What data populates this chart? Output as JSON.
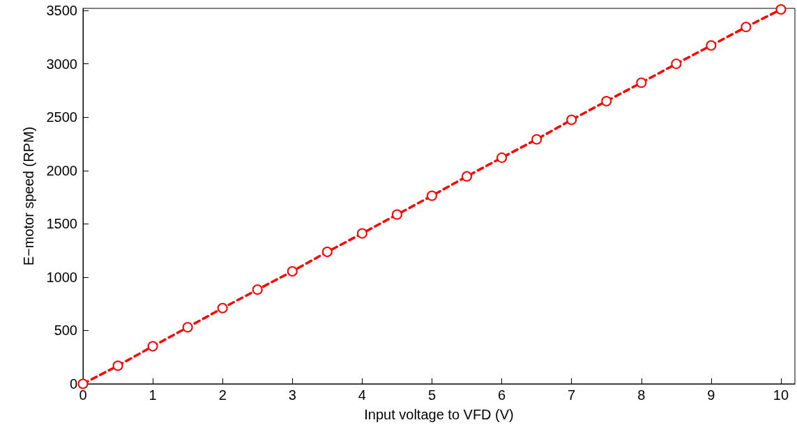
{
  "chart_data": {
    "type": "line",
    "xlabel": "Input voltage to VFD (V)",
    "ylabel": "E−motor speed (RPM)",
    "x": [
      0,
      0.5,
      1,
      1.5,
      2,
      2.5,
      3,
      3.5,
      4,
      4.5,
      5,
      5.5,
      6,
      6.5,
      7,
      7.5,
      8,
      8.5,
      9,
      9.5,
      10
    ],
    "series": [
      {
        "color": "#ff0000",
        "values": [
          0,
          170,
          352,
          530,
          710,
          883,
          1055,
          1237,
          1410,
          1587,
          1763,
          1945,
          2120,
          2292,
          2475,
          2650,
          2823,
          3000,
          3172,
          3345,
          3510
        ]
      }
    ],
    "xlim": [
      0,
      10.2
    ],
    "xticks": [
      0,
      1,
      2,
      3,
      4,
      5,
      6,
      7,
      8,
      9,
      10
    ],
    "ylim": [
      0,
      3520
    ],
    "yticks": [
      0,
      500,
      1000,
      1500,
      2000,
      2500,
      3000,
      3500
    ],
    "grid": false,
    "marker": "circle",
    "line_style": "dashed"
  }
}
